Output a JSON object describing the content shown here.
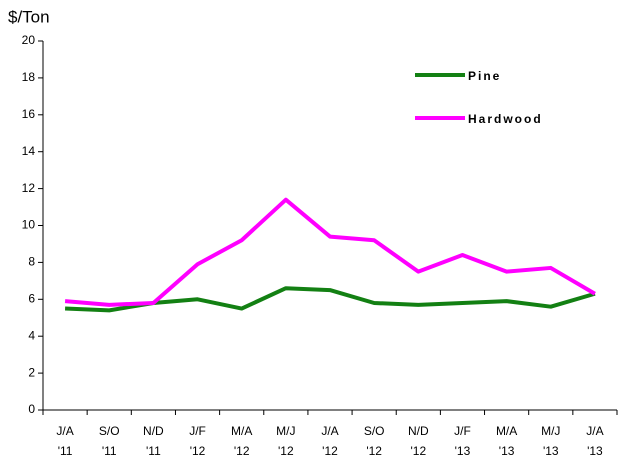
{
  "chart_data": {
    "type": "line",
    "y_label": "$/Ton",
    "categories": [
      "J/A '11",
      "S/O '11",
      "N/D '11",
      "J/F '12",
      "M/A '12",
      "M/J '12",
      "J/A '12",
      "S/O '12",
      "N/D '12",
      "J/F '13",
      "M/A '13",
      "M/J '13",
      "J/A '13"
    ],
    "series": [
      {
        "name": "Pine",
        "color": "#138013",
        "values": [
          5.5,
          5.4,
          5.8,
          6.0,
          5.5,
          6.6,
          6.5,
          5.8,
          5.7,
          5.8,
          5.9,
          5.6,
          6.3
        ]
      },
      {
        "name": "Hardwood",
        "color": "#ff00ff",
        "values": [
          5.9,
          5.7,
          5.8,
          7.9,
          9.2,
          11.4,
          9.4,
          9.2,
          7.5,
          8.4,
          7.5,
          7.7,
          6.3
        ]
      }
    ],
    "ylim": [
      0,
      20
    ],
    "yticks": [
      0,
      2,
      4,
      6,
      8,
      10,
      12,
      14,
      16,
      18,
      20
    ],
    "grid": false,
    "legend": "top-right"
  }
}
